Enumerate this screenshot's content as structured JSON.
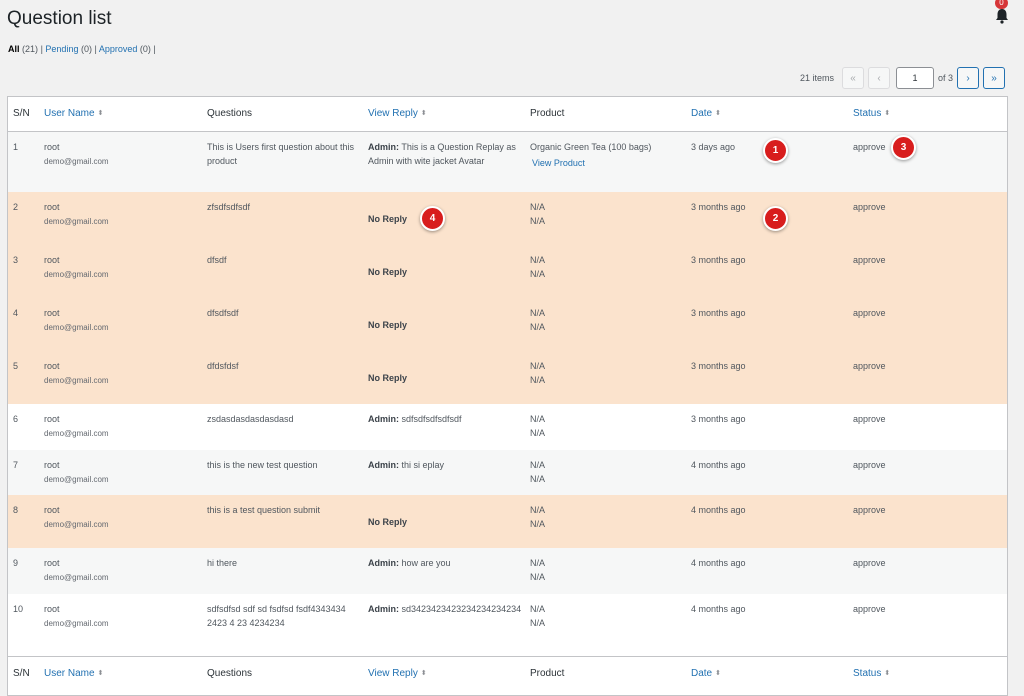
{
  "page": {
    "title": "Question list",
    "notification_count": "0"
  },
  "filters": [
    {
      "label": "All",
      "count": "(21)",
      "current": true
    },
    {
      "label": "Pending",
      "count": "(0)",
      "current": false
    },
    {
      "label": "Approved",
      "count": "(0)",
      "current": false
    }
  ],
  "pagination": {
    "items": "21 items",
    "first": "«",
    "prev": "‹",
    "current": "1",
    "of": "of 3",
    "next": "›",
    "last": "»"
  },
  "columns": [
    "S/N",
    "User Name",
    "Questions",
    "View Reply",
    "Product",
    "Date",
    "Status"
  ],
  "sortable": [
    false,
    true,
    false,
    true,
    false,
    true,
    true
  ],
  "sort_icon": "⬍",
  "rows": [
    {
      "sn": "1",
      "user": "root",
      "email": "demo@gmail.com",
      "question": "This is Users first question about this product",
      "reply_label": "Admin:",
      "reply": "This is a Question Replay as Admin with wite jacket Avatar",
      "no_reply": "",
      "product": "Organic Green Tea (100 bags)",
      "product_link": "View Product",
      "product2": "",
      "date": "3 days ago",
      "status": "approve",
      "style": "odd"
    },
    {
      "sn": "2",
      "user": "root",
      "email": "demo@gmail.com",
      "question": "zfsdfsdfsdf",
      "reply_label": "",
      "reply": "",
      "no_reply": "No Reply",
      "product": "N/A",
      "product_link": "",
      "product2": "N/A",
      "date": "3 months ago",
      "status": "approve",
      "style": "hl"
    },
    {
      "sn": "3",
      "user": "root",
      "email": "demo@gmail.com",
      "question": "dfsdf",
      "reply_label": "",
      "reply": "",
      "no_reply": "No Reply",
      "product": "N/A",
      "product_link": "",
      "product2": "N/A",
      "date": "3 months ago",
      "status": "approve",
      "style": "hl"
    },
    {
      "sn": "4",
      "user": "root",
      "email": "demo@gmail.com",
      "question": "dfsdfsdf",
      "reply_label": "",
      "reply": "",
      "no_reply": "No Reply",
      "product": "N/A",
      "product_link": "",
      "product2": "N/A",
      "date": "3 months ago",
      "status": "approve",
      "style": "hl"
    },
    {
      "sn": "5",
      "user": "root",
      "email": "demo@gmail.com",
      "question": "dfdsfdsf",
      "reply_label": "",
      "reply": "",
      "no_reply": "No Reply",
      "product": "N/A",
      "product_link": "",
      "product2": "N/A",
      "date": "3 months ago",
      "status": "approve",
      "style": "hl"
    },
    {
      "sn": "6",
      "user": "root",
      "email": "demo@gmail.com",
      "question": "zsdasdasdasdasdasd",
      "reply_label": "Admin:",
      "reply": "sdfsdfsdfsdfsdf",
      "no_reply": "",
      "product": "N/A",
      "product_link": "",
      "product2": "N/A",
      "date": "3 months ago",
      "status": "approve",
      "style": "even"
    },
    {
      "sn": "7",
      "user": "root",
      "email": "demo@gmail.com",
      "question": "this is the new test question",
      "reply_label": "Admin:",
      "reply": "thi si eplay",
      "no_reply": "",
      "product": "N/A",
      "product_link": "",
      "product2": "N/A",
      "date": "4 months ago",
      "status": "approve",
      "style": "odd"
    },
    {
      "sn": "8",
      "user": "root",
      "email": "demo@gmail.com",
      "question": "this is a test question submit",
      "reply_label": "",
      "reply": "",
      "no_reply": "No Reply",
      "product": "N/A",
      "product_link": "",
      "product2": "N/A",
      "date": "4 months ago",
      "status": "approve",
      "style": "hl"
    },
    {
      "sn": "9",
      "user": "root",
      "email": "demo@gmail.com",
      "question": "hi there",
      "reply_label": "Admin:",
      "reply": "how are you",
      "no_reply": "",
      "product": "N/A",
      "product_link": "",
      "product2": "N/A",
      "date": "4 months ago",
      "status": "approve",
      "style": "odd"
    },
    {
      "sn": "10",
      "user": "root",
      "email": "demo@gmail.com",
      "question": "sdfsdfsd sdf sd fsdfsd fsdf4343434 2423 4 23 4234234",
      "reply_label": "Admin:",
      "reply": "sd3423423423234234234234",
      "no_reply": "",
      "product": "N/A",
      "product_link": "",
      "product2": "N/A",
      "date": "4 months ago",
      "status": "approve",
      "style": "even"
    }
  ],
  "markers": [
    "1",
    "2",
    "3",
    "4"
  ],
  "colors": {
    "accent": "#2271b1",
    "highlight_row": "#fbe3cd",
    "marker": "#d81d1d"
  }
}
